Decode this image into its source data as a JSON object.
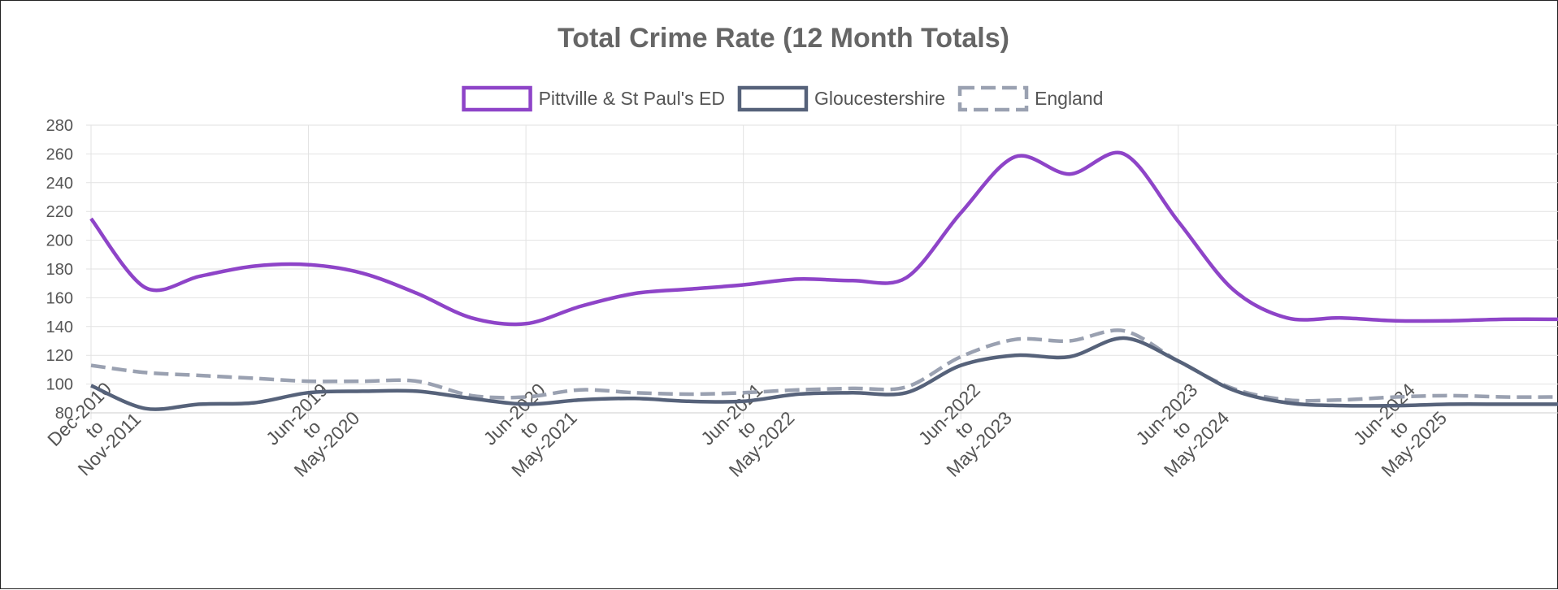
{
  "chart_data": {
    "type": "line",
    "title": "Total Crime Rate (12 Month Totals)",
    "xlabel": "",
    "ylabel": "",
    "ylim": [
      80,
      280
    ],
    "yticks": [
      80,
      100,
      120,
      140,
      160,
      180,
      200,
      220,
      240,
      260,
      280
    ],
    "grid": true,
    "legend_position": "top",
    "categories": [
      "Dec-2010 to Nov-2011",
      "",
      "",
      "",
      "Jun-2019 to May-2020",
      "",
      "",
      "",
      "Jun-2020 to May-2021",
      "",
      "",
      "",
      "Jun-2021 to May-2022",
      "",
      "",
      "",
      "Jun-2022 to May-2023",
      "",
      "",
      "",
      "Jun-2023 to May-2024",
      "",
      "",
      "",
      "Jun-2024 to May-2025",
      "",
      "",
      ""
    ],
    "x_tick_labels": [
      {
        "index": 0,
        "lines": [
          "Dec-2010",
          "to",
          "Nov-2011"
        ]
      },
      {
        "index": 4,
        "lines": [
          "Jun-2019",
          "to",
          "May-2020"
        ]
      },
      {
        "index": 8,
        "lines": [
          "Jun-2020",
          "to",
          "May-2021"
        ]
      },
      {
        "index": 12,
        "lines": [
          "Jun-2021",
          "to",
          "May-2022"
        ]
      },
      {
        "index": 16,
        "lines": [
          "Jun-2022",
          "to",
          "May-2023"
        ]
      },
      {
        "index": 20,
        "lines": [
          "Jun-2023",
          "to",
          "May-2024"
        ]
      },
      {
        "index": 24,
        "lines": [
          "Jun-2024",
          "to",
          "May-2025"
        ]
      }
    ],
    "series": [
      {
        "name": "Pittville & St Paul's ED",
        "color": "#8e44c8",
        "dashed": false,
        "values": [
          215,
          167,
          175,
          182,
          183,
          177,
          163,
          146,
          142,
          154,
          163,
          166,
          169,
          173,
          172,
          174,
          219,
          258,
          246,
          260,
          213,
          166,
          146,
          146,
          144,
          144,
          145,
          145
        ]
      },
      {
        "name": "Gloucestershire",
        "color": "#56627a",
        "dashed": false,
        "values": [
          99,
          83,
          86,
          87,
          94,
          95,
          95,
          90,
          86,
          89,
          90,
          88,
          88,
          93,
          94,
          94,
          113,
          120,
          119,
          132,
          116,
          96,
          87,
          85,
          85,
          86,
          86,
          86
        ]
      },
      {
        "name": "England",
        "color": "#9aa1b1",
        "dashed": true,
        "values": [
          113,
          108,
          106,
          104,
          102,
          102,
          102,
          92,
          91,
          96,
          94,
          93,
          94,
          96,
          97,
          98,
          119,
          131,
          130,
          137,
          116,
          97,
          89,
          89,
          91,
          92,
          91,
          91
        ]
      }
    ]
  }
}
